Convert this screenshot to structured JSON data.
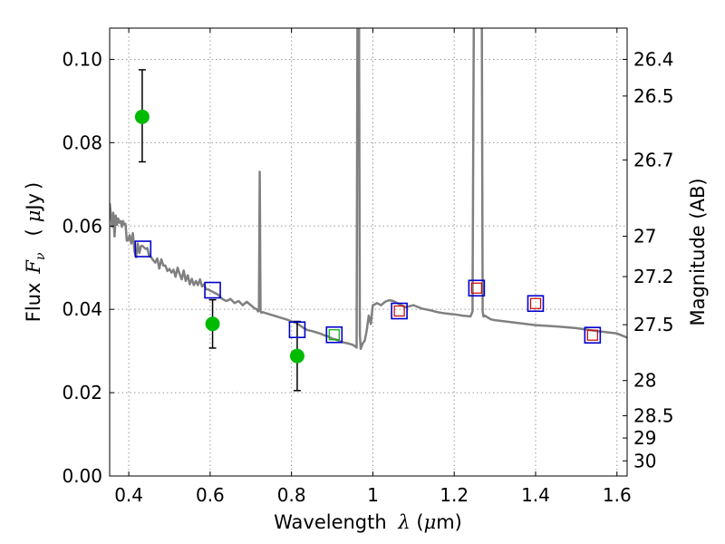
{
  "chart_data": {
    "type": "scatter",
    "title": "",
    "xlabel": {
      "prefix": "Wavelength",
      "lambda": "λ",
      "unit_open": " (",
      "mu": "μ",
      "unit_tail": "m)"
    },
    "ylabel": {
      "prefix": "Flux",
      "symbol": "F",
      "subscript": "ν",
      "unit_open": "(",
      "mu": "μ",
      "unit_tail": "Jy",
      "unit_close": ")"
    },
    "ylabel_right": "Magnitude (AB)",
    "xlim": [
      0.353,
      1.625
    ],
    "ylim": [
      0.0,
      0.1075
    ],
    "x_ticks": [
      0.4,
      0.6,
      0.8,
      1.0,
      1.2,
      1.4,
      1.6
    ],
    "x_tick_labels": [
      "0.4",
      "0.6",
      "0.8",
      "1",
      "1.2",
      "1.4",
      "1.6"
    ],
    "y_ticks": [
      0.0,
      0.02,
      0.04,
      0.06,
      0.08,
      0.1
    ],
    "y_tick_labels": [
      "0.00",
      "0.02",
      "0.04",
      "0.06",
      "0.08",
      "0.10"
    ],
    "mag_ticks": [
      {
        "label": "26.4",
        "value": 26.4
      },
      {
        "label": "26.5",
        "value": 26.5
      },
      {
        "label": "26.7",
        "value": 26.7
      },
      {
        "label": "27",
        "value": 27.0
      },
      {
        "label": "27.2",
        "value": 27.2
      },
      {
        "label": "27.5",
        "value": 27.5
      },
      {
        "label": "28",
        "value": 28.0
      },
      {
        "label": "28.5",
        "value": 28.5
      },
      {
        "label": "29",
        "value": 29.0
      },
      {
        "label": "30",
        "value": 30.0
      }
    ],
    "grid": true,
    "colors": {
      "model": "#808080",
      "observed": "#00bb00",
      "model_box": "#0000cc",
      "green_box": "#00aa00",
      "red_box": "#cc0000",
      "error": "#000000",
      "grid": "#999999"
    },
    "series": [
      {
        "name": "model spectrum",
        "kind": "line",
        "x": [
          0.353,
          0.356,
          0.359,
          0.362,
          0.365,
          0.368,
          0.371,
          0.374,
          0.377,
          0.38,
          0.383,
          0.386,
          0.389,
          0.392,
          0.395,
          0.398,
          0.402,
          0.406,
          0.41,
          0.414,
          0.418,
          0.422,
          0.426,
          0.43,
          0.434,
          0.438,
          0.442,
          0.446,
          0.45,
          0.455,
          0.46,
          0.465,
          0.47,
          0.475,
          0.48,
          0.485,
          0.49,
          0.495,
          0.5,
          0.505,
          0.51,
          0.515,
          0.52,
          0.525,
          0.53,
          0.535,
          0.54,
          0.545,
          0.55,
          0.555,
          0.56,
          0.565,
          0.57,
          0.575,
          0.58,
          0.585,
          0.59,
          0.595,
          0.6,
          0.61,
          0.62,
          0.63,
          0.64,
          0.65,
          0.66,
          0.67,
          0.68,
          0.69,
          0.7,
          0.71,
          0.715,
          0.718,
          0.72,
          0.722,
          0.724,
          0.726,
          0.728,
          0.73,
          0.74,
          0.75,
          0.76,
          0.77,
          0.78,
          0.79,
          0.8,
          0.81,
          0.82,
          0.83,
          0.84,
          0.85,
          0.86,
          0.87,
          0.88,
          0.89,
          0.9,
          0.91,
          0.92,
          0.93,
          0.94,
          0.95,
          0.955,
          0.958,
          0.96,
          0.962,
          0.964,
          0.966,
          0.968,
          0.97,
          0.975,
          0.98,
          0.985,
          0.99,
          0.995,
          1.0,
          1.005,
          1.01,
          1.02,
          1.03,
          1.04,
          1.05,
          1.06,
          1.07,
          1.08,
          1.1,
          1.12,
          1.14,
          1.16,
          1.18,
          1.2,
          1.22,
          1.24,
          1.245,
          1.248,
          1.25,
          1.252,
          1.255,
          1.26,
          1.265,
          1.268,
          1.27,
          1.272,
          1.275,
          1.28,
          1.29,
          1.3,
          1.35,
          1.4,
          1.45,
          1.5,
          1.55,
          1.6,
          1.625
        ],
        "y": [
          0.0655,
          0.063,
          0.0598,
          0.0632,
          0.0575,
          0.0625,
          0.0603,
          0.0618,
          0.0608,
          0.0612,
          0.0598,
          0.0612,
          0.0603,
          0.0605,
          0.0565,
          0.0565,
          0.0578,
          0.0558,
          0.0583,
          0.054,
          0.0525,
          0.0558,
          0.0535,
          0.0552,
          0.0552,
          0.0548,
          0.0545,
          0.0547,
          0.0528,
          0.0525,
          0.0518,
          0.0512,
          0.0522,
          0.0498,
          0.052,
          0.0505,
          0.0505,
          0.0492,
          0.0497,
          0.0488,
          0.0495,
          0.0478,
          0.05,
          0.0485,
          0.0472,
          0.0493,
          0.0468,
          0.0482,
          0.046,
          0.0473,
          0.0458,
          0.0468,
          0.0458,
          0.0472,
          0.0455,
          0.046,
          0.0448,
          0.0448,
          0.0445,
          0.044,
          0.0435,
          0.0425,
          0.042,
          0.0425,
          0.0415,
          0.042,
          0.041,
          0.0418,
          0.041,
          0.0402,
          0.04,
          0.0395,
          0.0397,
          0.073,
          0.0396,
          0.0392,
          0.0393,
          0.0393,
          0.039,
          0.0387,
          0.0384,
          0.0381,
          0.0378,
          0.0375,
          0.0371,
          0.0368,
          0.0362,
          0.0355,
          0.035,
          0.0348,
          0.0345,
          0.0342,
          0.0338,
          0.0335,
          0.033,
          0.0327,
          0.0323,
          0.032,
          0.0318,
          0.0315,
          0.0312,
          0.031,
          0.0308,
          0.108,
          0.108,
          0.108,
          0.034,
          0.0305,
          0.0318,
          0.0325,
          0.035,
          0.0385,
          0.0365,
          0.041,
          0.0412,
          0.0415,
          0.041,
          0.0418,
          0.0422,
          0.042,
          0.0415,
          0.041,
          0.0405,
          0.041,
          0.0402,
          0.0398,
          0.0393,
          0.039,
          0.0388,
          0.0385,
          0.0383,
          0.0395,
          0.108,
          0.108,
          0.108,
          0.108,
          0.108,
          0.108,
          0.108,
          0.0395,
          0.0383,
          0.0385,
          0.0382,
          0.0376,
          0.0374,
          0.0368,
          0.0362,
          0.0359,
          0.0355,
          0.0348,
          0.0342,
          0.0332
        ]
      },
      {
        "name": "observed photometry",
        "kind": "points-with-errors",
        "x": [
          0.433,
          0.606,
          0.814
        ],
        "y": [
          0.0862,
          0.0365,
          0.0288
        ],
        "yerr_low": [
          0.0108,
          0.0058,
          0.0083
        ],
        "yerr_high": [
          0.0113,
          0.0058,
          0.0083
        ]
      },
      {
        "name": "model photometry",
        "kind": "boxes",
        "x": [
          0.435,
          0.606,
          0.814,
          0.905,
          1.065,
          1.255,
          1.4,
          1.54
        ],
        "y": [
          0.0545,
          0.0446,
          0.0351,
          0.0339,
          0.0396,
          0.0451,
          0.0414,
          0.0338
        ]
      },
      {
        "name": "green box",
        "kind": "inner-boxes",
        "x": [
          0.905
        ],
        "y": [
          0.0339
        ]
      },
      {
        "name": "red boxes",
        "kind": "inner-boxes",
        "x": [
          1.065,
          1.255,
          1.4,
          1.54
        ],
        "y": [
          0.0396,
          0.0451,
          0.0414,
          0.0338
        ]
      }
    ]
  }
}
